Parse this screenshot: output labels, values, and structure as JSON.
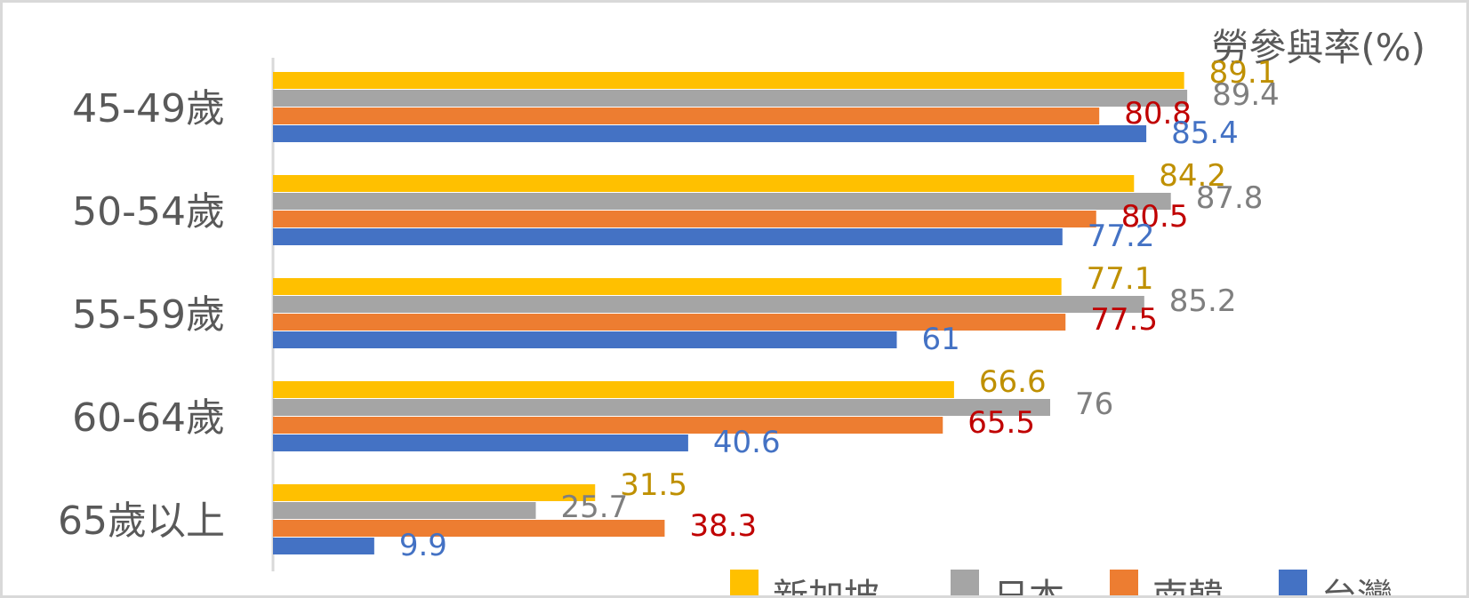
{
  "chart_data": {
    "type": "bar",
    "orientation": "horizontal",
    "axis_title": "勞參與率(%)",
    "categories": [
      "45-49歲",
      "50-54歲",
      "55-59歲",
      "60-64歲",
      "65歲以上"
    ],
    "series": [
      {
        "name": "新加坡",
        "color": "#FFC000",
        "label_color": "#BF9000",
        "values": [
          89.1,
          84.2,
          77.1,
          66.6,
          31.5
        ]
      },
      {
        "name": "日本",
        "color": "#A5A5A5",
        "label_color": "#7F7F7F",
        "values": [
          89.4,
          87.8,
          85.2,
          76,
          25.7
        ]
      },
      {
        "name": "南韓",
        "color": "#ED7D31",
        "label_color": "#C00000",
        "values": [
          80.8,
          80.5,
          77.5,
          65.5,
          38.3
        ]
      },
      {
        "name": "台灣",
        "color": "#4472C4",
        "label_color": "#4472C4",
        "values": [
          85.4,
          77.2,
          61,
          40.6,
          9.9
        ]
      }
    ],
    "xlim": [
      0,
      100
    ],
    "grid": false,
    "legend_position": "bottom"
  }
}
